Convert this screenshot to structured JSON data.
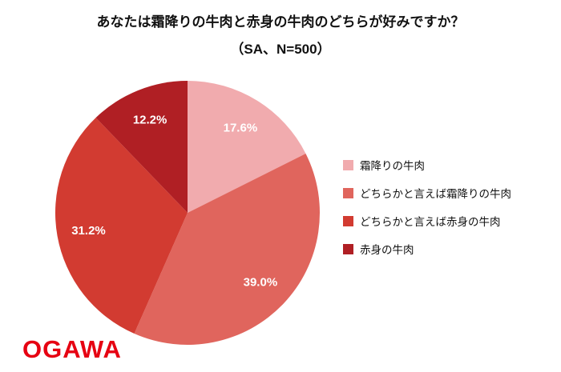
{
  "chart_data": {
    "type": "pie",
    "title": "あなたは霜降りの牛肉と赤身の牛肉のどちらが好みですか？",
    "subtitle": "（SA、N=500）",
    "sample_size": 500,
    "unit": "%",
    "direction": "clockwise",
    "start_angle_deg": 0,
    "legend_position": "right",
    "label_color": "#FFFFFF",
    "slices": [
      {
        "label": "霜降りの牛肉",
        "value": 17.6,
        "display": "17.6%",
        "color": "#F1ABAE"
      },
      {
        "label": "どちらかと言えば霜降りの牛肉",
        "value": 39.0,
        "display": "39.0%",
        "color": "#E0655D"
      },
      {
        "label": "どちらかと言えば赤身の牛肉",
        "value": 31.2,
        "display": "31.2%",
        "color": "#D23B31"
      },
      {
        "label": "赤身の牛肉",
        "value": 12.2,
        "display": "12.2%",
        "color": "#B01F24"
      }
    ]
  },
  "logo": {
    "text": "OGAWA",
    "color": "#E60012"
  }
}
